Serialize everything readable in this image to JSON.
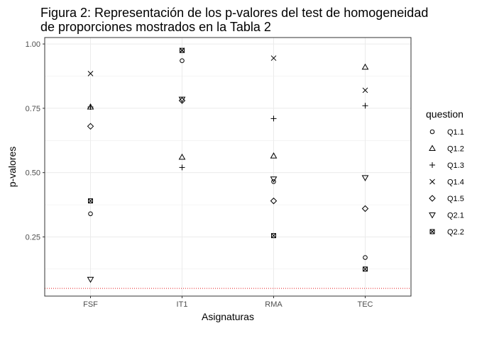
{
  "chart_data": {
    "type": "scatter",
    "title": "Figura 2: Representación de los p-valores del test de homogeneidad de proporciones mostrados en la Tabla 2",
    "title_lines": [
      "Figura 2: Representación de los p-valores del test de homogeneidad",
      "de proporciones mostrados en la Tabla 2"
    ],
    "xlabel": "Asignaturas",
    "ylabel": "p-valores",
    "categories": [
      "FSF",
      "IT1",
      "RMA",
      "TEC"
    ],
    "y_ticks": [
      0.25,
      0.5,
      0.75,
      1.0
    ],
    "y_tick_labels": [
      "0.25",
      "0.50",
      "0.75",
      "1.00"
    ],
    "ylim": [
      0.02,
      1.025
    ],
    "grid": true,
    "reference_line": {
      "y": 0.05,
      "style": "dotted",
      "color": "#e41a1c"
    },
    "legend": {
      "title": "question",
      "position": "right"
    },
    "series": [
      {
        "name": "Q1.1",
        "shape": "circle",
        "values": [
          0.34,
          0.935,
          null,
          0.17
        ]
      },
      {
        "name": "Q1.2",
        "shape": "triangle-up",
        "values": [
          0.755,
          0.56,
          0.565,
          0.91
        ]
      },
      {
        "name": "Q1.3",
        "shape": "plus",
        "values": [
          0.755,
          0.52,
          0.71,
          0.76
        ]
      },
      {
        "name": "Q1.4",
        "shape": "cross",
        "values": [
          0.885,
          0.975,
          0.945,
          0.82
        ]
      },
      {
        "name": "Q1.5",
        "shape": "diamond",
        "values": [
          0.68,
          0.78,
          0.39,
          0.36
        ]
      },
      {
        "name": "Q2.1",
        "shape": "triangle-down",
        "values": [
          0.085,
          0.785,
          0.475,
          0.48
        ]
      },
      {
        "name": "Q2.2",
        "shape": "square-cross",
        "values": [
          0.39,
          0.975,
          0.255,
          0.125
        ]
      }
    ],
    "extra_points": [
      {
        "series": "Q1.1",
        "category": "RMA",
        "value": 0.465
      }
    ]
  },
  "colors": {
    "grid": "#ebebeb",
    "panel_border": "#333333",
    "marker": "#000000",
    "reference": "#e41a1c"
  }
}
